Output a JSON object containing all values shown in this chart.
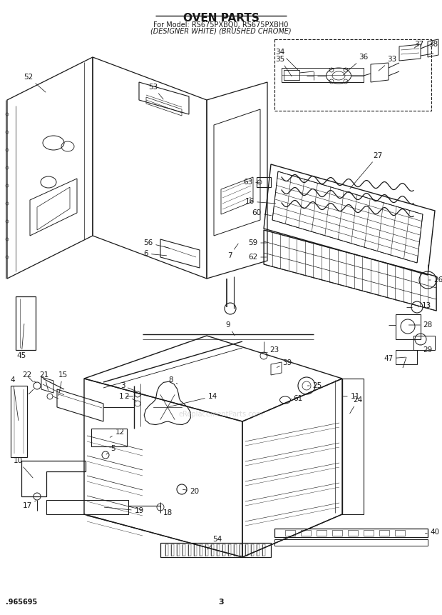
{
  "title": "OVEN PARTS",
  "subtitle1": "For Model: RS675PXBQ0, RS675PXBH0",
  "subtitle2": "(DESIGNER WHITE) (BRUSHED CHROME)",
  "footer_left": ".965695",
  "footer_center": "3",
  "bg_color": "#ffffff",
  "line_color": "#1a1a1a",
  "title_fontsize": 11,
  "subtitle_fontsize": 7,
  "footer_fontsize": 7,
  "label_fontsize": 7.5,
  "watermark": "eReplacementParts.com"
}
